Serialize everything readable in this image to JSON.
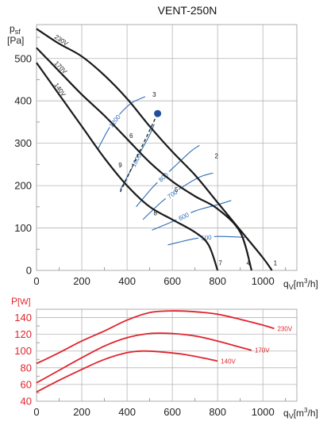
{
  "chart_data": [
    {
      "type": "line",
      "title": "VENT-250N",
      "ylabel": "p",
      "ylabel_sub": "sf",
      "ylabel_unit": "[Pa]",
      "xlabel": "q",
      "xlabel_sub": "V",
      "xlabel_unit": "[m",
      "xlabel_unit_sup": "3",
      "xlabel_unit_end": "/h]",
      "xlim": [
        0,
        1150
      ],
      "ylim": [
        0,
        580
      ],
      "xticks": [
        "0",
        "200",
        "400",
        "600",
        "800",
        "1000"
      ],
      "yticks": [
        "0",
        "100",
        "200",
        "300",
        "400",
        "500"
      ],
      "grid": true,
      "colors": {
        "curve": "#1a1a1a",
        "iso": "#2f6db5",
        "point": "#1f4f9c",
        "tick_red": "#e0242c"
      },
      "series": [
        {
          "name": "230V",
          "points": [
            [
              0,
              570
            ],
            [
              100,
              535
            ],
            [
              200,
              505
            ],
            [
              300,
              460
            ],
            [
              400,
              405
            ],
            [
              500,
              340
            ],
            [
              600,
              280
            ],
            [
              700,
              225
            ],
            [
              800,
              160
            ],
            [
              900,
              95
            ],
            [
              1000,
              30
            ],
            [
              1040,
              0
            ]
          ]
        },
        {
          "name": "170V",
          "points": [
            [
              0,
              525
            ],
            [
              100,
              470
            ],
            [
              200,
              415
            ],
            [
              300,
              365
            ],
            [
              400,
              310
            ],
            [
              500,
              255
            ],
            [
              600,
              210
            ],
            [
              700,
              175
            ],
            [
              800,
              145
            ],
            [
              900,
              90
            ],
            [
              950,
              0
            ]
          ]
        },
        {
          "name": "140V",
          "points": [
            [
              0,
              490
            ],
            [
              100,
              415
            ],
            [
              200,
              340
            ],
            [
              300,
              265
            ],
            [
              400,
              200
            ],
            [
              500,
              150
            ],
            [
              600,
              120
            ],
            [
              700,
              90
            ],
            [
              760,
              60
            ],
            [
              800,
              0
            ]
          ]
        }
      ],
      "iso_lines": [
        {
          "label": "1200",
          "points": [
            [
              270,
              285
            ],
            [
              320,
              335
            ],
            [
              370,
              370
            ],
            [
              420,
              395
            ],
            [
              480,
              410
            ]
          ]
        },
        {
          "label": "1000",
          "points": [
            [
              370,
              190
            ],
            [
              420,
              240
            ],
            [
              460,
              280
            ],
            [
              500,
              320
            ],
            [
              520,
              345
            ]
          ]
        },
        {
          "label": "800",
          "points": [
            [
              440,
              150
            ],
            [
              520,
              200
            ],
            [
              600,
              240
            ],
            [
              680,
              280
            ],
            [
              720,
              295
            ]
          ]
        },
        {
          "label": "700",
          "points": [
            [
              470,
              120
            ],
            [
              560,
              165
            ],
            [
              640,
              195
            ],
            [
              720,
              220
            ],
            [
              780,
              230
            ]
          ]
        },
        {
          "label": "600",
          "points": [
            [
              510,
              95
            ],
            [
              600,
              115
            ],
            [
              700,
              140
            ],
            [
              800,
              155
            ],
            [
              860,
              165
            ]
          ]
        },
        {
          "label": "500",
          "points": [
            [
              580,
              60
            ],
            [
              700,
              75
            ],
            [
              800,
              80
            ],
            [
              920,
              78
            ]
          ]
        }
      ],
      "point_labels": [
        {
          "label": "1",
          "x": 1055,
          "y": 12
        },
        {
          "label": "2",
          "x": 795,
          "y": 265
        },
        {
          "label": "3",
          "x": 520,
          "y": 410
        },
        {
          "label": "4",
          "x": 935,
          "y": 12
        },
        {
          "label": "5",
          "x": 618,
          "y": 185
        },
        {
          "label": "6",
          "x": 418,
          "y": 312
        },
        {
          "label": "7",
          "x": 812,
          "y": 12
        },
        {
          "label": "8",
          "x": 525,
          "y": 130
        },
        {
          "label": "9",
          "x": 370,
          "y": 243
        }
      ],
      "operating_point": {
        "x": 535,
        "y": 370
      }
    },
    {
      "type": "line",
      "ylabel": "P",
      "ylabel_unit": "[W]",
      "xlabel": "q",
      "xlabel_sub": "V",
      "xlabel_unit": "[m",
      "xlabel_unit_sup": "3",
      "xlabel_unit_end": "/h]",
      "xlim": [
        0,
        1150
      ],
      "ylim": [
        40,
        150
      ],
      "xticks": [
        "0",
        "200",
        "400",
        "600",
        "800",
        "1000"
      ],
      "yticks": [
        "40",
        "60",
        "80",
        "100",
        "120",
        "140"
      ],
      "grid": true,
      "colors": {
        "curve": "#e0242c"
      },
      "series": [
        {
          "name": "230V",
          "points": [
            [
              0,
              85
            ],
            [
              100,
              98
            ],
            [
              200,
              112
            ],
            [
              300,
              124
            ],
            [
              400,
              137
            ],
            [
              500,
              146
            ],
            [
              600,
              148
            ],
            [
              700,
              147
            ],
            [
              800,
              144
            ],
            [
              900,
              138
            ],
            [
              1000,
              131
            ],
            [
              1050,
              127
            ]
          ]
        },
        {
          "name": "170V",
          "points": [
            [
              0,
              62
            ],
            [
              100,
              77
            ],
            [
              200,
              92
            ],
            [
              300,
              106
            ],
            [
              400,
              116
            ],
            [
              500,
              121
            ],
            [
              600,
              121
            ],
            [
              700,
              118
            ],
            [
              800,
              112
            ],
            [
              880,
              106
            ],
            [
              950,
              101
            ]
          ]
        },
        {
          "name": "140V",
          "points": [
            [
              0,
              51
            ],
            [
              100,
              65
            ],
            [
              200,
              78
            ],
            [
              300,
              90
            ],
            [
              400,
              98
            ],
            [
              470,
              100
            ],
            [
              550,
              99
            ],
            [
              650,
              96
            ],
            [
              750,
              91
            ],
            [
              800,
              88
            ]
          ]
        }
      ]
    }
  ]
}
